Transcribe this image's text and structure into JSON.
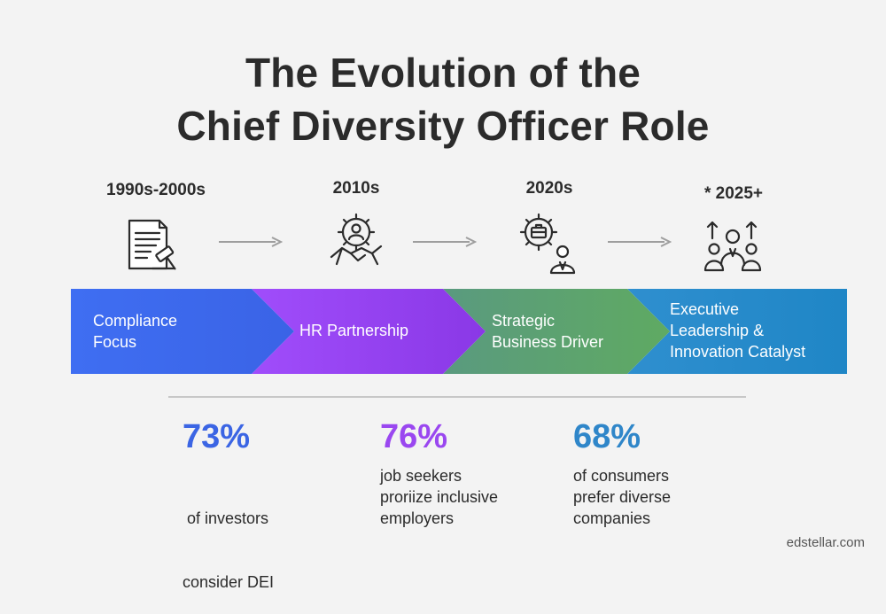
{
  "title": {
    "line1": "The Evolution of the",
    "line2": "Chief Diversity Officer Role"
  },
  "timeline": [
    {
      "era": "1990s-2000s",
      "icon": "document-gavel-icon",
      "label_lines": [
        "Compliance",
        "Focus"
      ],
      "color_start": "#3f6ef2",
      "color_end": "#3a63e6"
    },
    {
      "era": "2010s",
      "icon": "gear-handshake-icon",
      "label_lines": [
        "HR Partnership"
      ],
      "color_start": "#a04dfb",
      "color_end": "#8a38e6"
    },
    {
      "era": "2020s",
      "icon": "gear-briefcase-person-icon",
      "label_lines": [
        "Strategic",
        "Business Driver"
      ],
      "color_start": "#5a9a7f",
      "color_end": "#5faa62"
    },
    {
      "era": "* 2025+",
      "icon": "leadership-team-icon",
      "label_lines": [
        "Executive",
        "Leadership &",
        "Innovation Catalyst"
      ],
      "color_start": "#2f8fcf",
      "color_end": "#1f86c6"
    }
  ],
  "stats": [
    {
      "value": "73%",
      "color": "#3b65e4",
      "text_lines": [
        " of investors",
        "consider DEI"
      ]
    },
    {
      "value": "76%",
      "color": "#9a47f0",
      "text_lines": [
        "job seekers",
        "proriize inclusive",
        "employers"
      ]
    },
    {
      "value": "68%",
      "color": "#2f86c9",
      "text_lines": [
        "of consumers",
        "prefer diverse",
        "companies"
      ]
    }
  ],
  "brand": "edstellar.com"
}
